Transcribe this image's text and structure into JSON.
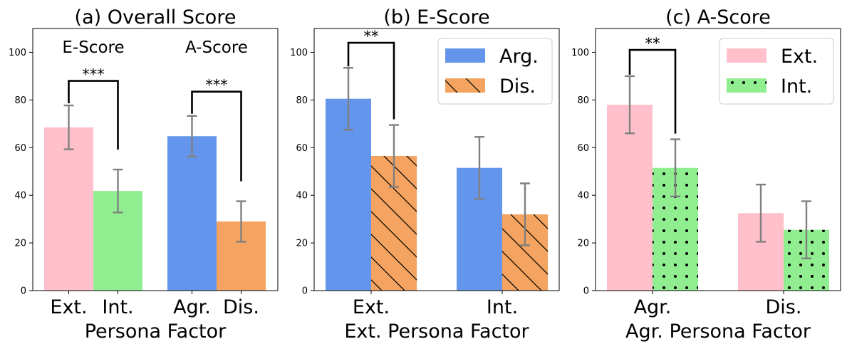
{
  "colors": {
    "pink": "#ffc0cb",
    "green": "#90ee90",
    "blue": "#6495ed",
    "orange": "#f4a460",
    "err": "#808080",
    "sig": "#000000"
  },
  "chart_data": [
    {
      "type": "bar",
      "title": "(a) Overall Score",
      "xlabel": "Persona Factor",
      "ylabel": "",
      "ylim": [
        0,
        110
      ],
      "yticks": [
        "0",
        "20",
        "40",
        "60",
        "80",
        "100"
      ],
      "categories": [
        "Ext.",
        "Int.",
        "Agr.",
        "Dis."
      ],
      "values": [
        68.5,
        41.8,
        64.8,
        29.0
      ],
      "errors": [
        9.2,
        9.0,
        8.5,
        8.5
      ],
      "bar_colors": [
        "pink",
        "green",
        "blue",
        "orange"
      ],
      "group_labels": [
        "E-Score",
        "A-Score"
      ],
      "significance": [
        {
          "from": 0,
          "to": 1,
          "label": "***",
          "level": 88
        },
        {
          "from": 2,
          "to": 3,
          "label": "***",
          "level": 83.5
        }
      ]
    },
    {
      "type": "bar",
      "title": "(b) E-Score",
      "xlabel": "Ext. Persona Factor",
      "ylabel": "",
      "ylim": [
        0,
        110
      ],
      "yticks": [
        "0",
        "20",
        "40",
        "60",
        "80",
        "100"
      ],
      "categories": [
        "Ext.",
        "Int."
      ],
      "series": [
        {
          "name": "Arg.",
          "values": [
            80.5,
            51.5
          ],
          "errors": [
            13.0,
            13.0
          ],
          "color": "blue",
          "hatch": "none"
        },
        {
          "name": "Dis.",
          "values": [
            56.5,
            32.0
          ],
          "errors": [
            13.0,
            13.0
          ],
          "color": "orange",
          "hatch": "diag"
        }
      ],
      "legend_position": "top-right",
      "significance": [
        {
          "group": 0,
          "label": "**",
          "level": 104
        }
      ]
    },
    {
      "type": "bar",
      "title": "(c) A-Score",
      "xlabel": "Agr. Persona Factor",
      "ylabel": "",
      "ylim": [
        0,
        110
      ],
      "yticks": [
        "0",
        "20",
        "40",
        "60",
        "80",
        "100"
      ],
      "categories": [
        "Agr.",
        "Dis."
      ],
      "series": [
        {
          "name": "Ext.",
          "values": [
            78.0,
            32.5
          ],
          "errors": [
            12.0,
            12.0
          ],
          "color": "pink",
          "hatch": "none"
        },
        {
          "name": "Int.",
          "values": [
            51.5,
            25.5
          ],
          "errors": [
            12.0,
            12.0
          ],
          "color": "green",
          "hatch": "dots"
        }
      ],
      "legend_position": "top-right",
      "significance": [
        {
          "group": 0,
          "label": "**",
          "level": 101
        }
      ]
    }
  ]
}
